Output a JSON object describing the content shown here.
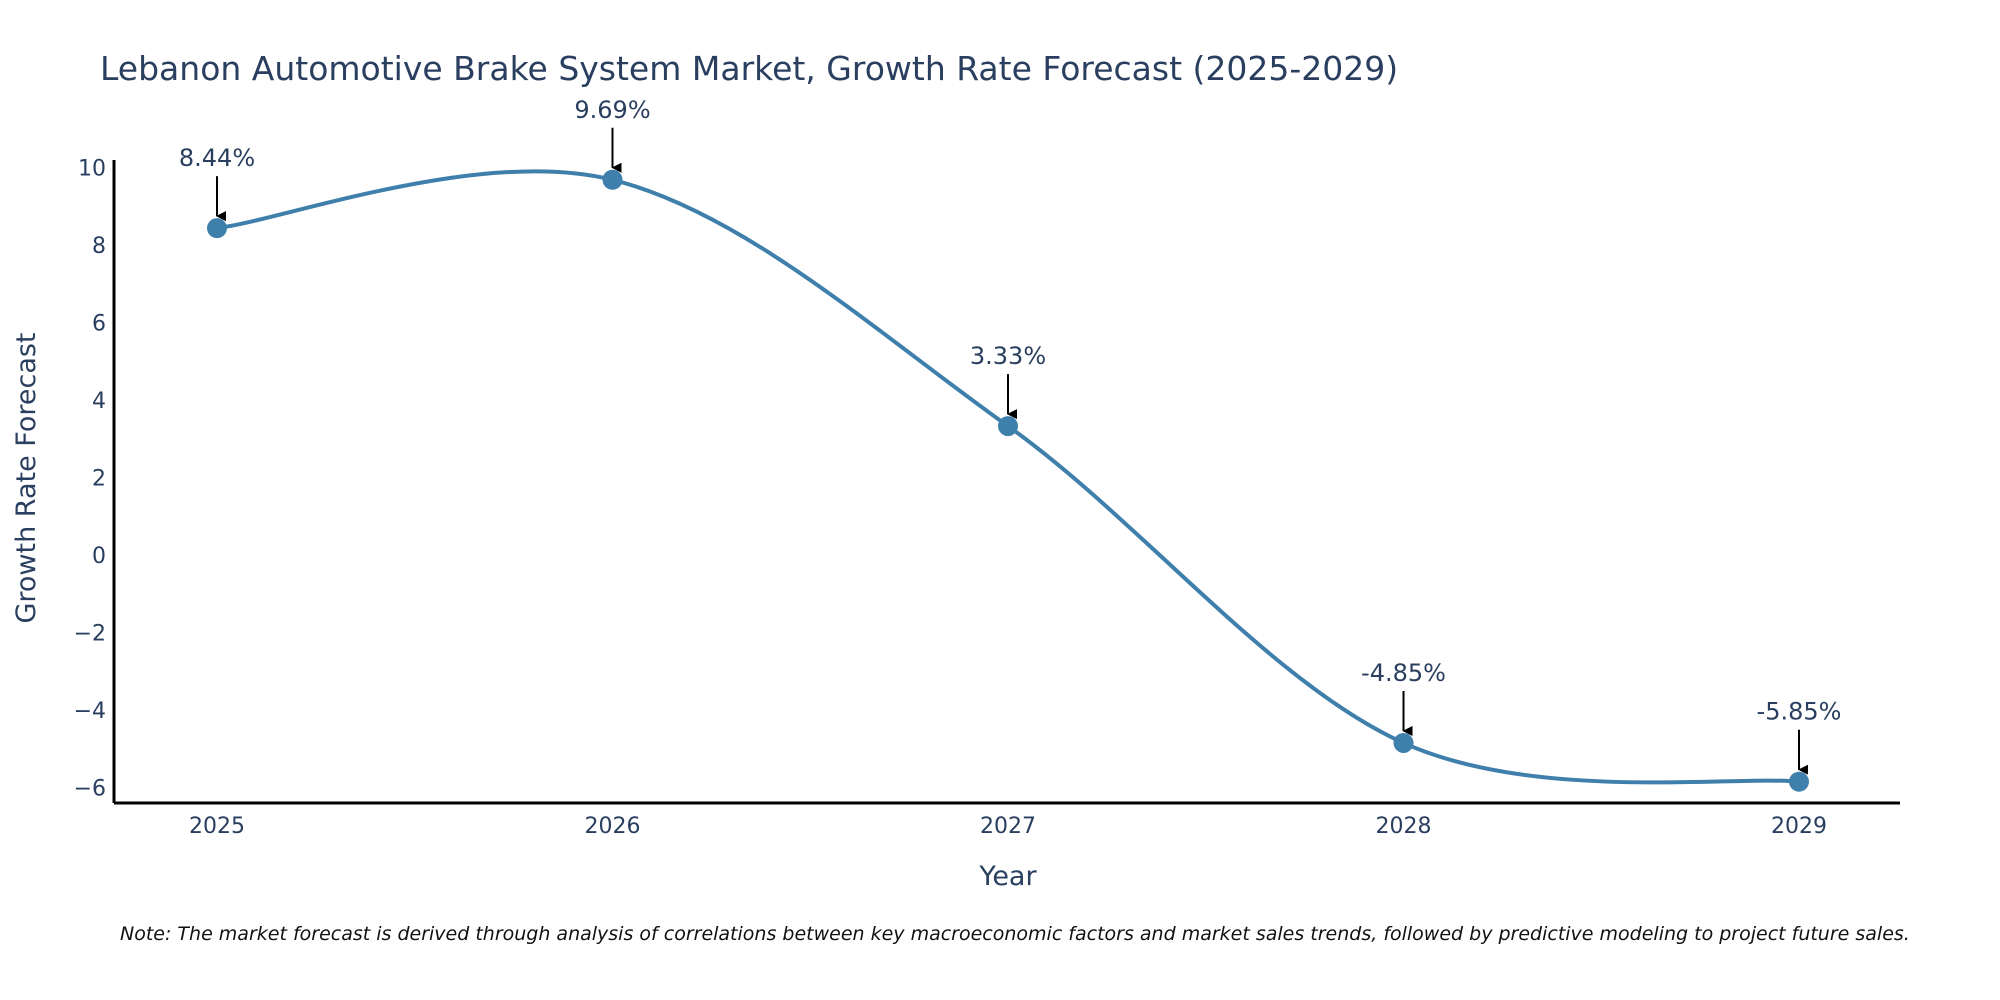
{
  "chart_data": {
    "type": "line",
    "title": "Lebanon Automotive Brake System Market, Growth Rate Forecast (2025-2029)",
    "xlabel": "Year",
    "ylabel": "Growth Rate Forecast",
    "categories": [
      "2025",
      "2026",
      "2027",
      "2028",
      "2029"
    ],
    "series": [
      {
        "name": "Growth Rate Forecast",
        "values": [
          8.44,
          9.69,
          3.33,
          -4.85,
          -5.85
        ],
        "labels": [
          "8.44%",
          "9.69%",
          "3.33%",
          "-4.85%",
          "-5.85%"
        ]
      }
    ],
    "ylim": [
      -6.4,
      10.2
    ],
    "yticks": [
      10,
      8,
      6,
      4,
      2,
      0,
      -2,
      -4,
      -6
    ],
    "ytick_labels": [
      "10",
      "8",
      "6",
      "4",
      "2",
      "0",
      "−2",
      "−4",
      "−6"
    ],
    "grid": false,
    "line_shape": "spline",
    "colors": {
      "line": "#3f7fab",
      "marker": "#3f7fab",
      "arrow": "#000000",
      "text": "#2a3f5f",
      "axis": "#000000"
    },
    "note": "Note: The market forecast is derived through analysis of correlations between key macroeconomic factors and market sales trends, followed by predictive modeling to project future sales."
  }
}
